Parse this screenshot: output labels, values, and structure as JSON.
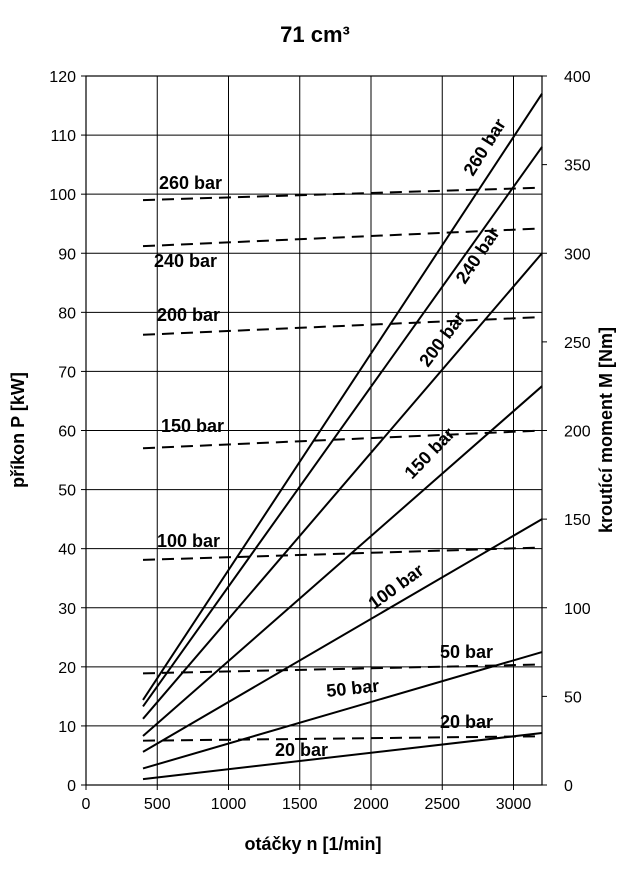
{
  "chart_data": {
    "type": "line",
    "title": "71 cm³",
    "xlabel": "otáčky n [1/min]",
    "ylabel": "příkon P [kW]",
    "y2label": "kroutící moment M [Nm]",
    "xlim": [
      0,
      3200
    ],
    "ylim": [
      0,
      120
    ],
    "y2lim": [
      0,
      400
    ],
    "x_ticks": [
      0,
      500,
      1000,
      1500,
      2000,
      2500,
      3000
    ],
    "y_ticks": [
      0,
      10,
      20,
      30,
      40,
      50,
      60,
      70,
      80,
      90,
      100,
      110,
      120
    ],
    "y2_ticks": [
      0,
      50,
      100,
      150,
      200,
      250,
      300,
      350,
      400
    ],
    "grid": true,
    "power_series": [
      {
        "label": "20 bar",
        "x": [
          400,
          3200
        ],
        "y": [
          1.0,
          8.8
        ]
      },
      {
        "label": "50 bar",
        "x": [
          400,
          3200
        ],
        "y": [
          2.8,
          22.5
        ]
      },
      {
        "label": "100 bar",
        "x": [
          400,
          3200
        ],
        "y": [
          5.6,
          45.0
        ]
      },
      {
        "label": "150 bar",
        "x": [
          400,
          3200
        ],
        "y": [
          8.3,
          67.5
        ]
      },
      {
        "label": "200 bar",
        "x": [
          400,
          3200
        ],
        "y": [
          11.2,
          90.0
        ]
      },
      {
        "label": "240 bar",
        "x": [
          400,
          3200
        ],
        "y": [
          13.3,
          108.0
        ]
      },
      {
        "label": "260 bar",
        "x": [
          400,
          3200
        ],
        "y": [
          14.4,
          117.0
        ]
      }
    ],
    "torque_series": [
      {
        "label": "20 bar",
        "x": [
          400,
          3200
        ],
        "y": [
          25,
          27.5
        ]
      },
      {
        "label": "50 bar",
        "x": [
          400,
          3200
        ],
        "y": [
          63,
          68
        ]
      },
      {
        "label": "100 bar",
        "x": [
          400,
          3200
        ],
        "y": [
          127,
          134
        ]
      },
      {
        "label": "150 bar",
        "x": [
          400,
          3200
        ],
        "y": [
          190,
          200
        ]
      },
      {
        "label": "200 bar",
        "x": [
          400,
          3200
        ],
        "y": [
          254,
          264
        ]
      },
      {
        "label": "240 bar",
        "x": [
          400,
          3200
        ],
        "y": [
          304,
          314
        ]
      },
      {
        "label": "260 bar",
        "x": [
          400,
          3200
        ],
        "y": [
          330,
          337
        ]
      }
    ]
  }
}
